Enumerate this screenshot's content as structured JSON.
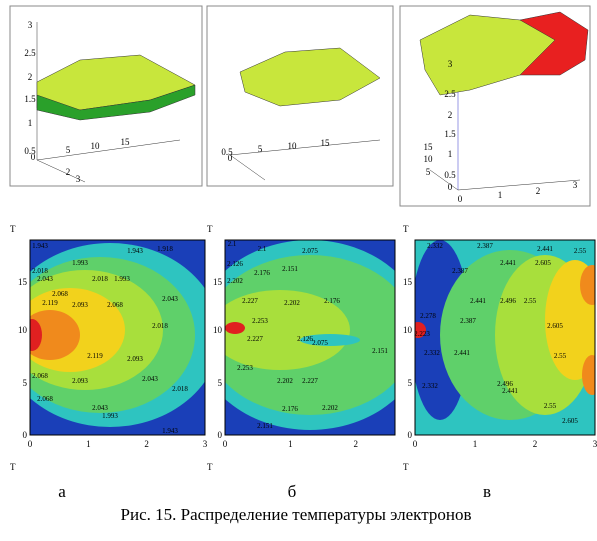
{
  "panels": [
    {
      "label": "а",
      "surface_ticks": [
        "3",
        "2.5",
        "2",
        "1.5",
        "1",
        "0.5",
        "0",
        "5",
        "10",
        "15",
        "2",
        "3"
      ],
      "axis_top": "T",
      "axis_bottom": "T",
      "yticks": [
        "15",
        "10",
        "5",
        "0"
      ],
      "xticks": [
        "0",
        "1",
        "2",
        "3"
      ],
      "contour_labels": [
        "1.943",
        "1.918",
        "1.943",
        "1.993",
        "2.018",
        "2.043",
        "2.018",
        "1.993",
        "2.068",
        "2.119",
        "2.093",
        "2.068",
        "2.043",
        "2.018",
        "2.119",
        "2.093",
        "2.068",
        "2.093",
        "2.043",
        "2.068",
        "2.043",
        "2.018",
        "1.993",
        "1.943"
      ]
    },
    {
      "label": "б",
      "surface_ticks": [
        "0.5",
        "0",
        "5",
        "10",
        "15"
      ],
      "axis_top": "T",
      "axis_bottom": "T",
      "yticks": [
        "15",
        "10",
        "5",
        "0"
      ],
      "xticks": [
        "0",
        "1",
        "2"
      ],
      "contour_labels": [
        "2.1",
        "2.1",
        "2.075",
        "2.126",
        "2.151",
        "2.176",
        "2.202",
        "2.227",
        "2.202",
        "2.176",
        "2.253",
        "2.227",
        "2.126",
        "2.075",
        "2.151",
        "2.253",
        "2.202",
        "2.227",
        "2.176",
        "2.202",
        "2.151"
      ]
    },
    {
      "label": "в",
      "surface_ticks": [
        "3",
        "2.5",
        "2",
        "1.5",
        "1",
        "0.5",
        "0",
        "15",
        "10",
        "5",
        "0",
        "1",
        "2",
        "3"
      ],
      "axis_top": "T",
      "axis_bottom": "T",
      "yticks": [
        "15",
        "10",
        "5",
        "0"
      ],
      "xticks": [
        "0",
        "1",
        "2",
        "3"
      ],
      "contour_labels": [
        "2.332",
        "2.387",
        "2.441",
        "2.55",
        "2.441",
        "2.605",
        "2.387",
        "2.441",
        "2.496",
        "2.55",
        "2.278",
        "2.387",
        "2.605",
        "2.223",
        "2.332",
        "2.441",
        "2.55",
        "2.496",
        "2.332",
        "2.441",
        "2.55",
        "2.605"
      ]
    }
  ],
  "caption": "Рис. 15. Распределение температуры электронов"
}
